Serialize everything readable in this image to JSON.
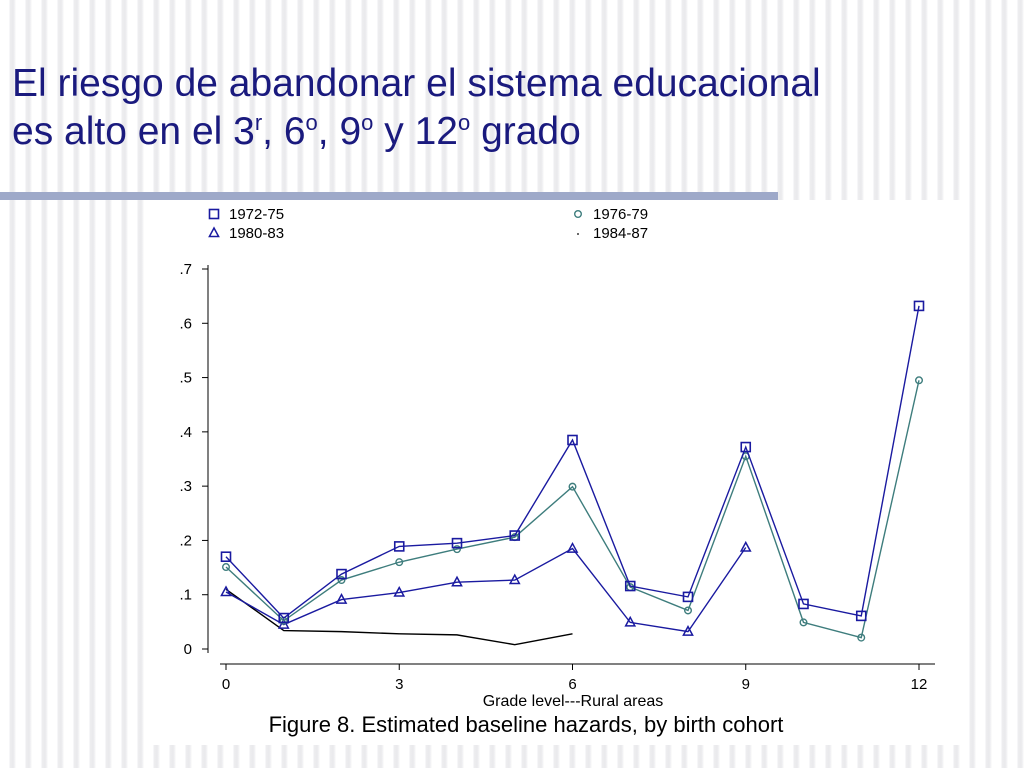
{
  "slide": {
    "title_line1": "El riesgo de abandonar el sistema educacional",
    "title_line2_a": "es alto en el 3",
    "title_sup_1": "r",
    "title_line2_b": ", 6",
    "title_sup_2": "o",
    "title_line2_c": ", 9",
    "title_sup_3": "o",
    "title_line2_d": " y 12",
    "title_sup_4": "o",
    "title_line2_e": " grado"
  },
  "chart_data": {
    "type": "line",
    "caption": "Figure 8. Estimated baseline hazards, by birth cohort",
    "xlabel": "Grade level---Rural areas",
    "ylabel": "",
    "x_ticks": [
      "0",
      "3",
      "6",
      "9",
      "12"
    ],
    "x_tick_values": [
      0,
      3,
      6,
      9,
      12
    ],
    "y_ticks": [
      "0",
      ".1",
      ".2",
      ".3",
      ".4",
      ".5",
      ".6",
      ".7"
    ],
    "y_tick_values": [
      0,
      0.1,
      0.2,
      0.3,
      0.4,
      0.5,
      0.6,
      0.7
    ],
    "xlim": [
      0,
      12
    ],
    "ylim": [
      0,
      0.7
    ],
    "grid": false,
    "legend_position": "top",
    "series": [
      {
        "name": "1972-75",
        "marker": "square",
        "color": "#1a1aa0",
        "x": [
          0,
          1,
          2,
          3,
          4,
          5,
          6,
          7,
          8,
          9,
          10,
          11,
          12
        ],
        "values": [
          0.17,
          0.057,
          0.138,
          0.189,
          0.195,
          0.209,
          0.385,
          0.116,
          0.096,
          0.372,
          0.083,
          0.061,
          0.632
        ]
      },
      {
        "name": "1976-79",
        "marker": "circle",
        "color": "#3e7d7d",
        "x": [
          0,
          1,
          2,
          3,
          4,
          5,
          6,
          7,
          8,
          9,
          10,
          11,
          12
        ],
        "values": [
          0.151,
          0.052,
          0.127,
          0.16,
          0.184,
          0.206,
          0.299,
          0.114,
          0.071,
          0.355,
          0.049,
          0.021,
          0.495
        ]
      },
      {
        "name": "1980-83",
        "marker": "triangle",
        "color": "#1a1aa0",
        "x": [
          0,
          1,
          2,
          3,
          4,
          5,
          6,
          7,
          8,
          9
        ],
        "values": [
          0.105,
          0.045,
          0.091,
          0.104,
          0.123,
          0.127,
          0.185,
          0.049,
          0.032,
          0.187
        ]
      },
      {
        "name": "1984-87",
        "marker": "dot",
        "color": "#000000",
        "x": [
          0,
          1,
          2,
          3,
          4,
          5,
          6
        ],
        "values": [
          0.11,
          0.034,
          0.032,
          0.028,
          0.026,
          0.008,
          0.028
        ]
      }
    ]
  }
}
